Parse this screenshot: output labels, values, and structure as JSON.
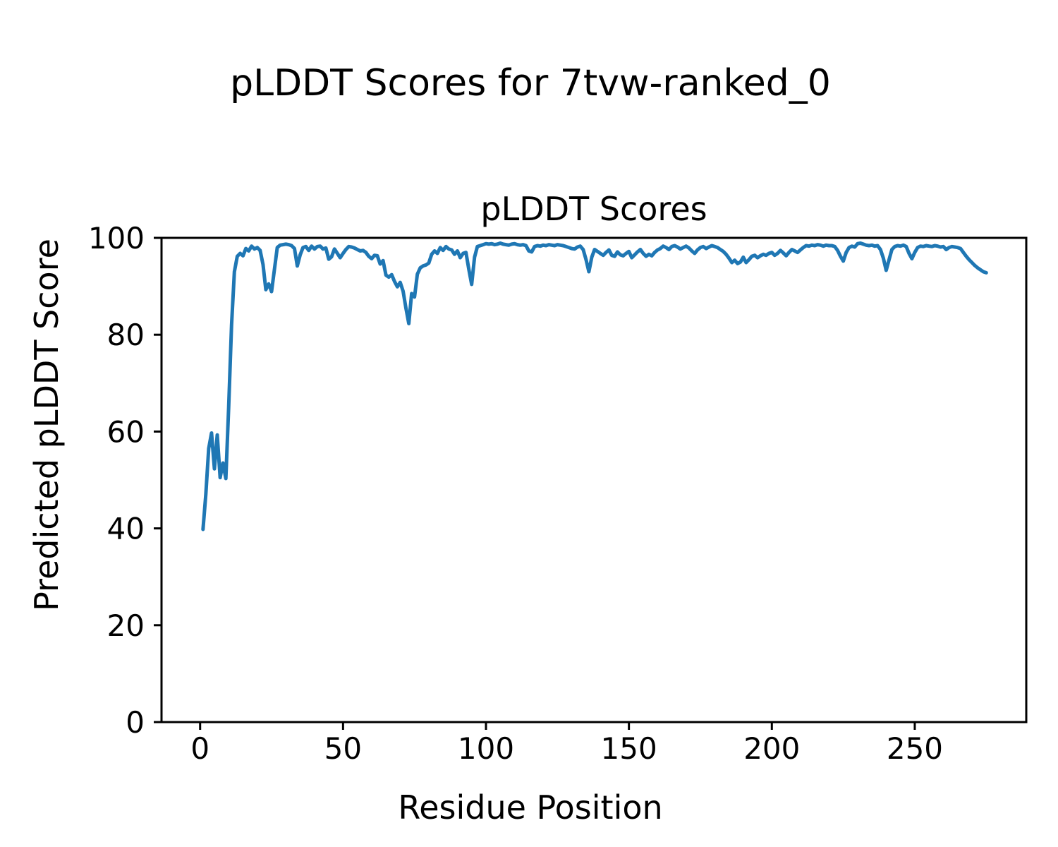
{
  "figure": {
    "suptitle": "pLDDT Scores for 7tvw-ranked_0",
    "background_color": "#ffffff",
    "text_color": "#000000"
  },
  "chart_data": {
    "type": "line",
    "title": "pLDDT Scores",
    "xlabel": "Residue Position",
    "ylabel": "Predicted pLDDT Score",
    "legend": null,
    "grid": false,
    "line_color": "#1f77b4",
    "xlim": [
      -13.5,
      289
    ],
    "ylim": [
      0,
      100
    ],
    "x_ticks": [
      0,
      50,
      100,
      150,
      200,
      250
    ],
    "y_ticks": [
      0,
      20,
      40,
      60,
      80,
      100
    ],
    "x_start": 1,
    "x_step": 1,
    "values": [
      39.8,
      47.0,
      56.5,
      59.7,
      52.3,
      59.3,
      50.5,
      53.5,
      50.3,
      65.0,
      82.0,
      93.0,
      96.2,
      96.8,
      96.3,
      97.8,
      97.3,
      98.3,
      97.7,
      98.0,
      97.4,
      94.5,
      89.3,
      90.5,
      88.9,
      93.5,
      98.0,
      98.5,
      98.6,
      98.7,
      98.6,
      98.4,
      97.8,
      94.2,
      96.5,
      98.0,
      98.2,
      97.4,
      98.3,
      97.7,
      98.2,
      98.3,
      97.7,
      97.9,
      95.6,
      96.1,
      97.7,
      96.8,
      95.9,
      96.8,
      97.6,
      98.2,
      98.1,
      97.9,
      97.6,
      97.3,
      97.4,
      97.0,
      96.2,
      95.7,
      96.4,
      96.3,
      94.6,
      95.3,
      92.3,
      91.9,
      92.4,
      91.0,
      89.9,
      90.8,
      89.0,
      85.5,
      82.3,
      88.5,
      87.8,
      92.5,
      93.8,
      94.2,
      94.4,
      94.8,
      96.6,
      97.3,
      96.8,
      98.0,
      97.4,
      98.2,
      97.7,
      97.5,
      96.6,
      97.3,
      95.9,
      96.8,
      97.0,
      93.5,
      90.4,
      96.0,
      98.2,
      98.4,
      98.6,
      98.8,
      98.7,
      98.8,
      98.6,
      98.7,
      98.9,
      98.7,
      98.6,
      98.5,
      98.7,
      98.8,
      98.6,
      98.5,
      98.6,
      98.4,
      97.3,
      97.1,
      98.2,
      98.4,
      98.3,
      98.5,
      98.4,
      98.6,
      98.5,
      98.4,
      98.6,
      98.5,
      98.4,
      98.2,
      98.0,
      97.8,
      97.7,
      98.1,
      98.3,
      97.6,
      95.5,
      93.0,
      96.0,
      97.6,
      97.2,
      96.8,
      96.4,
      97.0,
      97.5,
      96.4,
      96.2,
      97.1,
      96.5,
      96.3,
      96.8,
      97.2,
      95.9,
      96.5,
      97.1,
      97.6,
      96.8,
      96.2,
      96.6,
      96.3,
      97.0,
      97.5,
      97.8,
      98.3,
      98.0,
      97.6,
      98.2,
      98.4,
      98.1,
      97.7,
      98.0,
      98.3,
      97.9,
      97.3,
      96.8,
      97.5,
      98.0,
      98.2,
      97.8,
      98.1,
      98.4,
      98.2,
      98.0,
      97.6,
      97.2,
      96.6,
      95.8,
      94.9,
      95.4,
      94.7,
      95.0,
      96.0,
      94.9,
      95.5,
      96.2,
      96.4,
      95.9,
      96.3,
      96.6,
      96.4,
      96.8,
      97.0,
      96.4,
      96.8,
      97.4,
      96.9,
      96.3,
      97.0,
      97.6,
      97.3,
      97.0,
      97.5,
      98.0,
      98.4,
      98.3,
      98.5,
      98.4,
      98.6,
      98.5,
      98.3,
      98.5,
      98.4,
      98.4,
      98.2,
      97.4,
      96.2,
      95.2,
      97.0,
      98.0,
      98.3,
      98.1,
      98.8,
      98.9,
      98.7,
      98.5,
      98.4,
      98.5,
      98.3,
      98.4,
      97.6,
      95.8,
      93.3,
      95.5,
      97.6,
      98.2,
      98.4,
      98.3,
      98.5,
      98.2,
      96.8,
      95.7,
      97.0,
      98.0,
      98.3,
      98.2,
      98.4,
      98.3,
      98.2,
      98.4,
      98.3,
      98.1,
      98.2,
      97.6,
      98.0,
      98.2,
      98.1,
      98.0,
      97.8,
      97.0,
      96.2,
      95.5,
      94.9,
      94.3,
      93.8,
      93.4,
      93.0,
      92.8
    ]
  }
}
